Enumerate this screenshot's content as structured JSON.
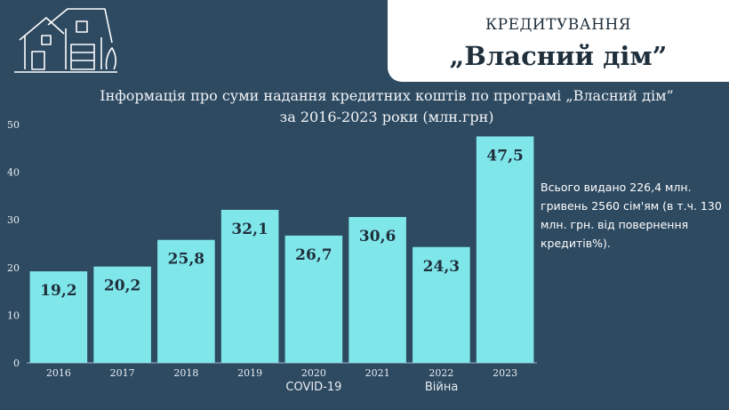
{
  "header": {
    "category": "КРЕДИТУВАННЯ",
    "program_name": "„Власний дім”"
  },
  "colors": {
    "background": "#2e4a61",
    "bar": "#7fe6ea",
    "bar_label": "#1f2f3c",
    "title_box": "#ffffff"
  },
  "chart_data": {
    "type": "bar",
    "title": "Інформація про суми надання кредитних коштів по програмі „Власний дім”",
    "subtitle": "за 2016-2023 роки (млн.грн)",
    "categories": [
      "2016",
      "2017",
      "2018",
      "2019",
      "2020",
      "2021",
      "2022",
      "2023"
    ],
    "values": [
      19.2,
      20.2,
      25.8,
      32.1,
      26.7,
      30.6,
      24.3,
      47.5
    ],
    "value_labels": [
      "19,2",
      "20,2",
      "25,8",
      "32,1",
      "26,7",
      "30,6",
      "24,3",
      "47,5"
    ],
    "yticks": [
      "0",
      "10",
      "20",
      "30",
      "40",
      "50"
    ],
    "ylim": [
      0,
      50
    ],
    "grid": false,
    "annotations": [
      {
        "category": "2020",
        "text": "COVID-19"
      },
      {
        "category": "2022",
        "text": "Війна"
      }
    ]
  },
  "note": "Всього видано 226,4 млн. гривень 2560 сім'ям    (в т.ч. 130 млн. грн. від повернення кредитів%)."
}
